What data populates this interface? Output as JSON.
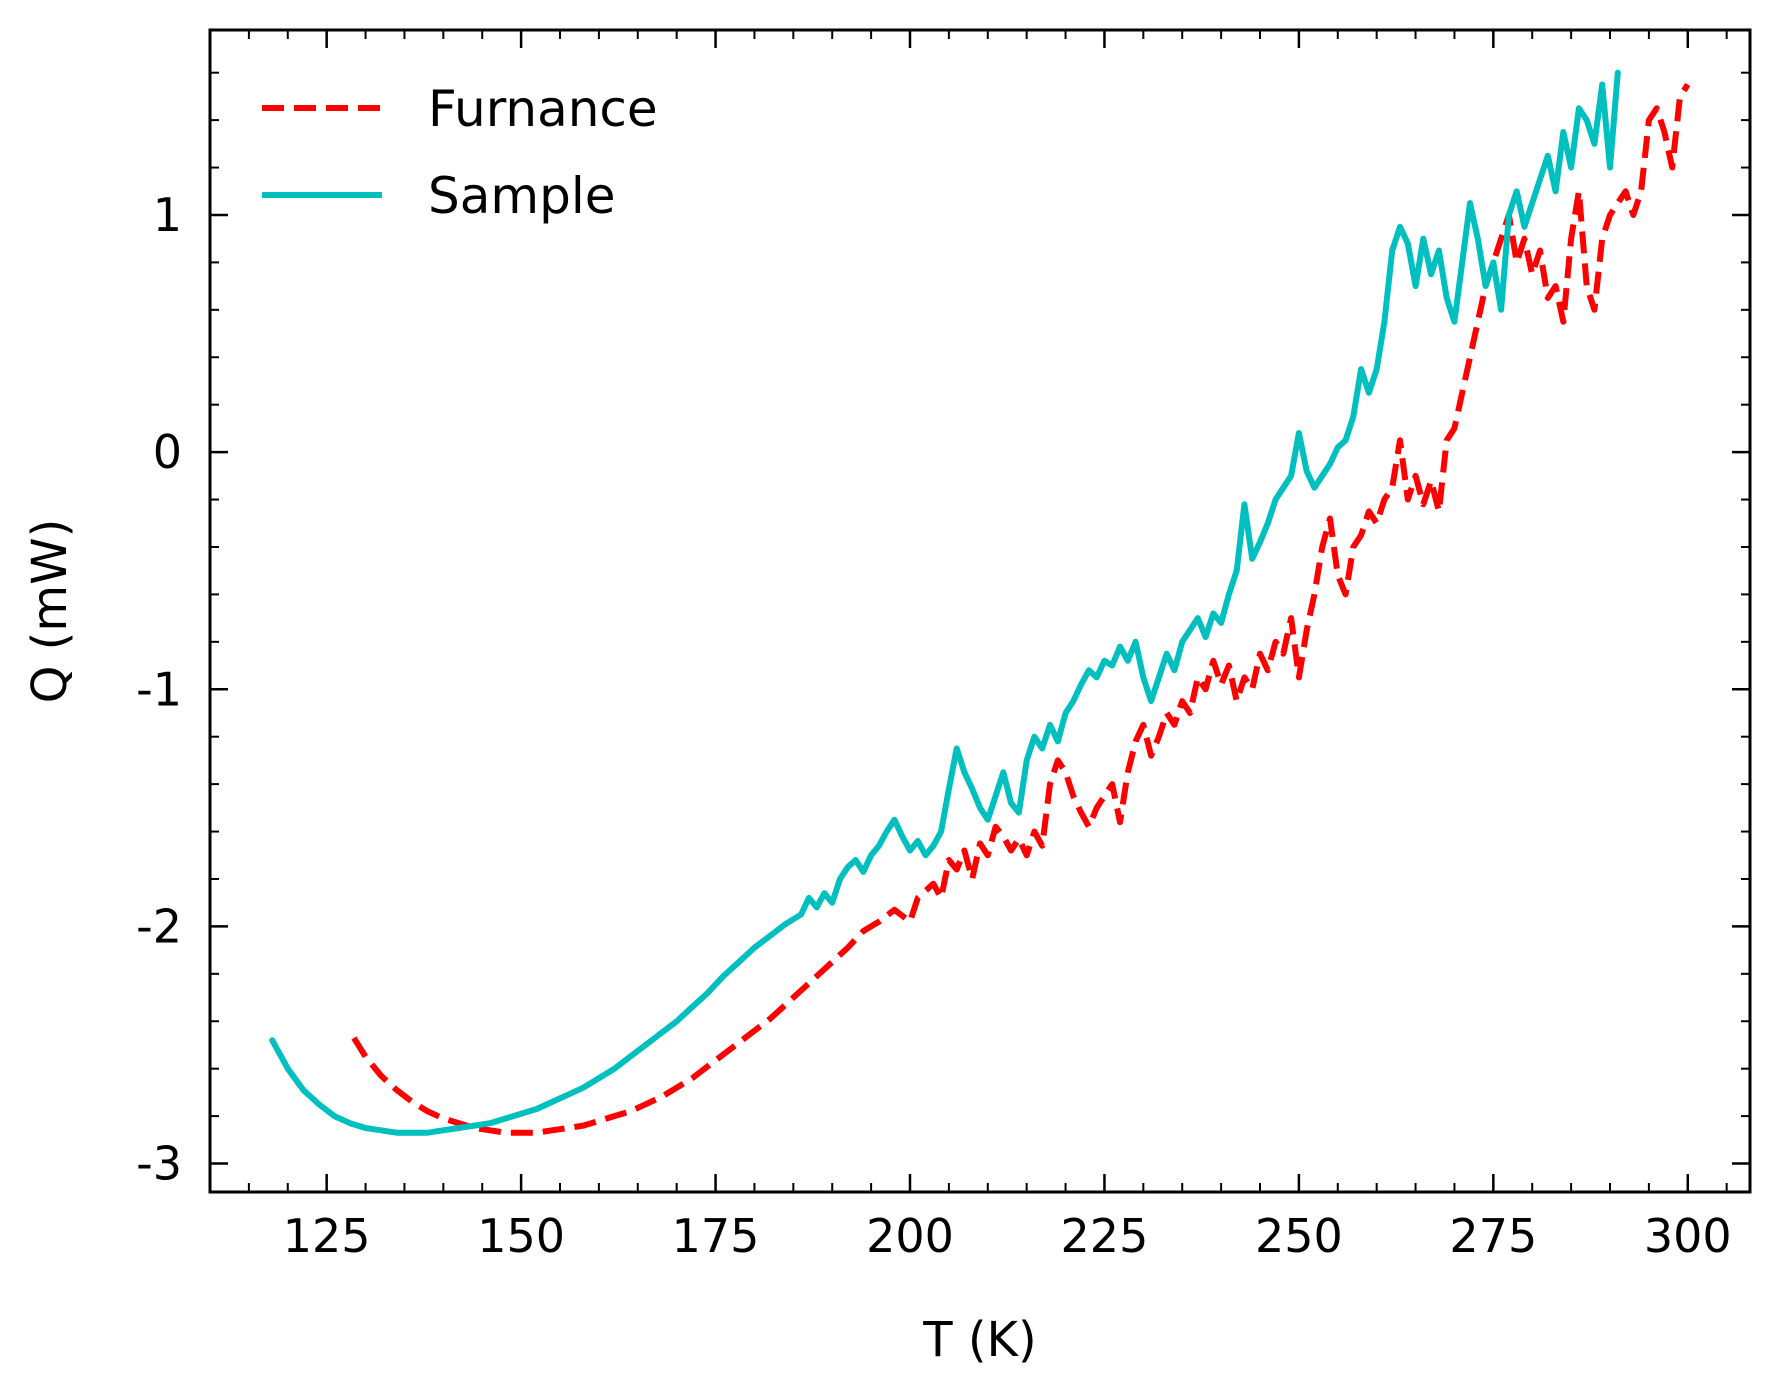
{
  "chart_data": {
    "type": "line",
    "title": "",
    "xlabel": "T (K)",
    "ylabel": "Q (mW)",
    "xlim": [
      110,
      308
    ],
    "ylim": [
      -3.12,
      1.78
    ],
    "xticks": [
      125,
      150,
      175,
      200,
      225,
      250,
      275,
      300
    ],
    "yticks": [
      -3,
      -2,
      -1,
      0,
      1
    ],
    "xtick_labels": [
      "125",
      "150",
      "175",
      "200",
      "225",
      "250",
      "275",
      "300"
    ],
    "ytick_labels": [
      "-3",
      "-2",
      "-1",
      "0",
      "1"
    ],
    "grid": false,
    "legend_position": "top-left",
    "series": [
      {
        "name": "Furnance",
        "color": "#ff0000",
        "style": "dashed",
        "points": [
          [
            128.5,
            -2.47
          ],
          [
            130,
            -2.55
          ],
          [
            132,
            -2.63
          ],
          [
            134,
            -2.69
          ],
          [
            136,
            -2.74
          ],
          [
            138,
            -2.78
          ],
          [
            140,
            -2.81
          ],
          [
            142,
            -2.83
          ],
          [
            144,
            -2.85
          ],
          [
            146,
            -2.86
          ],
          [
            148,
            -2.87
          ],
          [
            150,
            -2.87
          ],
          [
            152,
            -2.87
          ],
          [
            154,
            -2.86
          ],
          [
            156,
            -2.85
          ],
          [
            158,
            -2.84
          ],
          [
            160,
            -2.82
          ],
          [
            162,
            -2.8
          ],
          [
            164,
            -2.78
          ],
          [
            166,
            -2.75
          ],
          [
            168,
            -2.72
          ],
          [
            170,
            -2.68
          ],
          [
            172,
            -2.64
          ],
          [
            174,
            -2.59
          ],
          [
            176,
            -2.54
          ],
          [
            178,
            -2.49
          ],
          [
            180,
            -2.44
          ],
          [
            182,
            -2.39
          ],
          [
            184,
            -2.33
          ],
          [
            186,
            -2.27
          ],
          [
            188,
            -2.21
          ],
          [
            190,
            -2.15
          ],
          [
            192,
            -2.09
          ],
          [
            194,
            -2.02
          ],
          [
            196,
            -1.98
          ],
          [
            198,
            -1.93
          ],
          [
            200,
            -1.98
          ],
          [
            201,
            -1.88
          ],
          [
            203,
            -1.82
          ],
          [
            204,
            -1.88
          ],
          [
            205,
            -1.72
          ],
          [
            206,
            -1.76
          ],
          [
            207,
            -1.68
          ],
          [
            208,
            -1.8
          ],
          [
            209,
            -1.65
          ],
          [
            210,
            -1.7
          ],
          [
            211,
            -1.58
          ],
          [
            212,
            -1.62
          ],
          [
            213,
            -1.68
          ],
          [
            214,
            -1.63
          ],
          [
            215,
            -1.7
          ],
          [
            216,
            -1.6
          ],
          [
            217,
            -1.66
          ],
          [
            218,
            -1.4
          ],
          [
            219,
            -1.3
          ],
          [
            220,
            -1.35
          ],
          [
            221,
            -1.45
          ],
          [
            222,
            -1.52
          ],
          [
            223,
            -1.58
          ],
          [
            224,
            -1.5
          ],
          [
            225,
            -1.45
          ],
          [
            226,
            -1.4
          ],
          [
            227,
            -1.56
          ],
          [
            228,
            -1.35
          ],
          [
            229,
            -1.22
          ],
          [
            230,
            -1.15
          ],
          [
            231,
            -1.28
          ],
          [
            232,
            -1.2
          ],
          [
            233,
            -1.1
          ],
          [
            234,
            -1.15
          ],
          [
            235,
            -1.05
          ],
          [
            236,
            -1.1
          ],
          [
            237,
            -0.95
          ],
          [
            238,
            -1.0
          ],
          [
            239,
            -0.88
          ],
          [
            240,
            -0.98
          ],
          [
            241,
            -0.9
          ],
          [
            242,
            -1.05
          ],
          [
            243,
            -0.95
          ],
          [
            244,
            -1.0
          ],
          [
            245,
            -0.85
          ],
          [
            246,
            -0.92
          ],
          [
            247,
            -0.8
          ],
          [
            248,
            -0.85
          ],
          [
            249,
            -0.7
          ],
          [
            250,
            -0.95
          ],
          [
            251,
            -0.75
          ],
          [
            252,
            -0.6
          ],
          [
            253,
            -0.4
          ],
          [
            254,
            -0.28
          ],
          [
            255,
            -0.52
          ],
          [
            256,
            -0.6
          ],
          [
            257,
            -0.4
          ],
          [
            258,
            -0.35
          ],
          [
            259,
            -0.25
          ],
          [
            260,
            -0.3
          ],
          [
            261,
            -0.2
          ],
          [
            262,
            -0.15
          ],
          [
            263,
            0.05
          ],
          [
            264,
            -0.2
          ],
          [
            265,
            -0.1
          ],
          [
            266,
            -0.22
          ],
          [
            267,
            -0.12
          ],
          [
            268,
            -0.25
          ],
          [
            269,
            0.05
          ],
          [
            270,
            0.1
          ],
          [
            271,
            0.25
          ],
          [
            272,
            0.4
          ],
          [
            273,
            0.55
          ],
          [
            274,
            0.7
          ],
          [
            275,
            0.8
          ],
          [
            276,
            0.9
          ],
          [
            277,
            1.0
          ],
          [
            278,
            0.8
          ],
          [
            279,
            0.9
          ],
          [
            280,
            0.75
          ],
          [
            281,
            0.85
          ],
          [
            282,
            0.65
          ],
          [
            283,
            0.7
          ],
          [
            284,
            0.55
          ],
          [
            285,
            0.9
          ],
          [
            286,
            1.1
          ],
          [
            287,
            0.7
          ],
          [
            288,
            0.6
          ],
          [
            289,
            0.9
          ],
          [
            290,
            1.0
          ],
          [
            291,
            1.05
          ],
          [
            292,
            1.1
          ],
          [
            293,
            1.0
          ],
          [
            294,
            1.1
          ],
          [
            295,
            1.4
          ],
          [
            296,
            1.45
          ],
          [
            297,
            1.35
          ],
          [
            298,
            1.2
          ],
          [
            299,
            1.5
          ],
          [
            300,
            1.55
          ]
        ]
      },
      {
        "name": "Sample",
        "color": "#00bfbf",
        "style": "solid",
        "points": [
          [
            118,
            -2.48
          ],
          [
            120,
            -2.6
          ],
          [
            122,
            -2.69
          ],
          [
            124,
            -2.75
          ],
          [
            126,
            -2.8
          ],
          [
            128,
            -2.83
          ],
          [
            130,
            -2.85
          ],
          [
            132,
            -2.86
          ],
          [
            134,
            -2.87
          ],
          [
            136,
            -2.87
          ],
          [
            138,
            -2.87
          ],
          [
            140,
            -2.86
          ],
          [
            142,
            -2.85
          ],
          [
            144,
            -2.84
          ],
          [
            146,
            -2.83
          ],
          [
            148,
            -2.81
          ],
          [
            150,
            -2.79
          ],
          [
            152,
            -2.77
          ],
          [
            154,
            -2.74
          ],
          [
            156,
            -2.71
          ],
          [
            158,
            -2.68
          ],
          [
            160,
            -2.64
          ],
          [
            162,
            -2.6
          ],
          [
            164,
            -2.55
          ],
          [
            166,
            -2.5
          ],
          [
            168,
            -2.45
          ],
          [
            170,
            -2.4
          ],
          [
            172,
            -2.34
          ],
          [
            174,
            -2.28
          ],
          [
            176,
            -2.21
          ],
          [
            178,
            -2.15
          ],
          [
            180,
            -2.09
          ],
          [
            182,
            -2.04
          ],
          [
            184,
            -1.99
          ],
          [
            186,
            -1.95
          ],
          [
            187,
            -1.88
          ],
          [
            188,
            -1.92
          ],
          [
            189,
            -1.86
          ],
          [
            190,
            -1.9
          ],
          [
            191,
            -1.8
          ],
          [
            192,
            -1.75
          ],
          [
            193,
            -1.72
          ],
          [
            194,
            -1.77
          ],
          [
            195,
            -1.7
          ],
          [
            196,
            -1.66
          ],
          [
            197,
            -1.6
          ],
          [
            198,
            -1.55
          ],
          [
            199,
            -1.62
          ],
          [
            200,
            -1.68
          ],
          [
            201,
            -1.64
          ],
          [
            202,
            -1.7
          ],
          [
            203,
            -1.66
          ],
          [
            204,
            -1.6
          ],
          [
            205,
            -1.42
          ],
          [
            206,
            -1.25
          ],
          [
            207,
            -1.35
          ],
          [
            208,
            -1.42
          ],
          [
            209,
            -1.5
          ],
          [
            210,
            -1.55
          ],
          [
            211,
            -1.45
          ],
          [
            212,
            -1.35
          ],
          [
            213,
            -1.48
          ],
          [
            214,
            -1.52
          ],
          [
            215,
            -1.3
          ],
          [
            216,
            -1.2
          ],
          [
            217,
            -1.25
          ],
          [
            218,
            -1.15
          ],
          [
            219,
            -1.22
          ],
          [
            220,
            -1.1
          ],
          [
            221,
            -1.05
          ],
          [
            222,
            -0.98
          ],
          [
            223,
            -0.92
          ],
          [
            224,
            -0.95
          ],
          [
            225,
            -0.88
          ],
          [
            226,
            -0.9
          ],
          [
            227,
            -0.82
          ],
          [
            228,
            -0.88
          ],
          [
            229,
            -0.8
          ],
          [
            230,
            -0.95
          ],
          [
            231,
            -1.05
          ],
          [
            232,
            -0.95
          ],
          [
            233,
            -0.85
          ],
          [
            234,
            -0.92
          ],
          [
            235,
            -0.8
          ],
          [
            236,
            -0.75
          ],
          [
            237,
            -0.7
          ],
          [
            238,
            -0.78
          ],
          [
            239,
            -0.68
          ],
          [
            240,
            -0.72
          ],
          [
            241,
            -0.6
          ],
          [
            242,
            -0.5
          ],
          [
            243,
            -0.22
          ],
          [
            244,
            -0.45
          ],
          [
            245,
            -0.38
          ],
          [
            246,
            -0.3
          ],
          [
            247,
            -0.2
          ],
          [
            248,
            -0.15
          ],
          [
            249,
            -0.1
          ],
          [
            250,
            0.08
          ],
          [
            251,
            -0.08
          ],
          [
            252,
            -0.15
          ],
          [
            253,
            -0.1
          ],
          [
            254,
            -0.05
          ],
          [
            255,
            0.02
          ],
          [
            256,
            0.05
          ],
          [
            257,
            0.15
          ],
          [
            258,
            0.35
          ],
          [
            259,
            0.25
          ],
          [
            260,
            0.35
          ],
          [
            261,
            0.55
          ],
          [
            262,
            0.85
          ],
          [
            263,
            0.95
          ],
          [
            264,
            0.88
          ],
          [
            265,
            0.7
          ],
          [
            266,
            0.9
          ],
          [
            267,
            0.75
          ],
          [
            268,
            0.85
          ],
          [
            269,
            0.65
          ],
          [
            270,
            0.55
          ],
          [
            271,
            0.8
          ],
          [
            272,
            1.05
          ],
          [
            273,
            0.9
          ],
          [
            274,
            0.7
          ],
          [
            275,
            0.8
          ],
          [
            276,
            0.6
          ],
          [
            277,
            1.0
          ],
          [
            278,
            1.1
          ],
          [
            279,
            0.95
          ],
          [
            280,
            1.05
          ],
          [
            281,
            1.15
          ],
          [
            282,
            1.25
          ],
          [
            283,
            1.1
          ],
          [
            284,
            1.35
          ],
          [
            285,
            1.2
          ],
          [
            286,
            1.45
          ],
          [
            287,
            1.4
          ],
          [
            288,
            1.3
          ],
          [
            289,
            1.55
          ],
          [
            290,
            1.2
          ],
          [
            291,
            1.6
          ]
        ]
      }
    ]
  }
}
